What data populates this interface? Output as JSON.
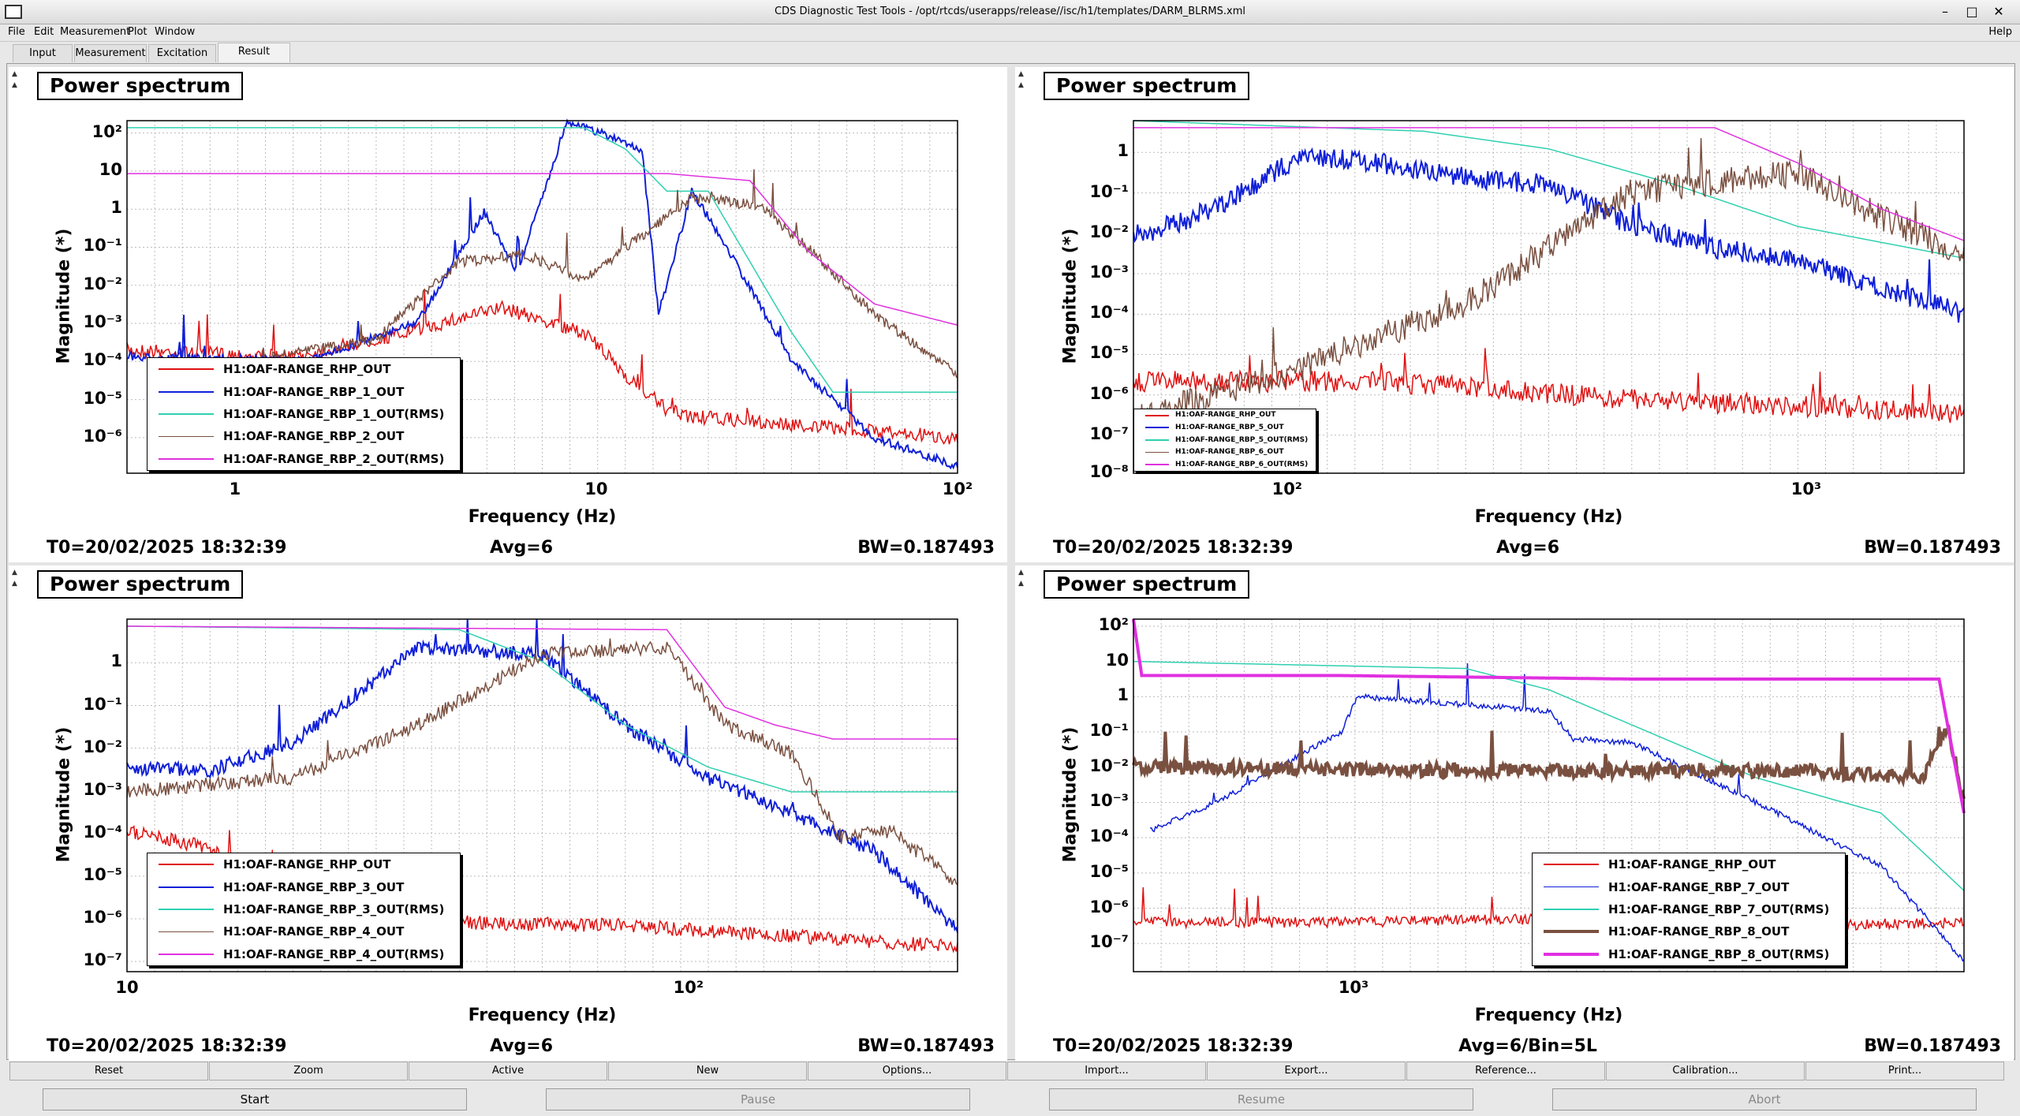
{
  "window": {
    "title": "CDS Diagnostic Test Tools - /opt/rtcds/userapps/release//isc/h1/templates/DARM_BLRMS.xml",
    "controls": [
      "–",
      "□",
      "✕"
    ]
  },
  "menu": {
    "items": [
      "File",
      "Edit",
      "Measurement",
      "Plot",
      "Window"
    ],
    "help": "Help"
  },
  "tabs": [
    "Input",
    "Measurement",
    "Excitation",
    "Result"
  ],
  "active_tab": "Result",
  "colors": {
    "red": "#e01010",
    "blue": "#1020d8",
    "cyan": "#30d0b0",
    "brown": "#7a5040",
    "magenta": "#e030e0"
  },
  "plots": [
    {
      "title": "Power spectrum",
      "ylabel": "Magnitude (*)",
      "xlabel": "Frequency (Hz)",
      "footer": {
        "t0": "T0=20/02/2025 18:32:39",
        "avg": "Avg=6",
        "bw": "BW=0.187493"
      },
      "xticks": [
        "1",
        "10",
        "10²"
      ],
      "yticks": [
        "10²",
        "10",
        "1",
        "10⁻¹",
        "10⁻²",
        "10⁻³",
        "10⁻⁴",
        "10⁻⁵",
        "10⁻⁶"
      ],
      "legend": [
        "H1:OAF-RANGE_RHP_OUT",
        "H1:OAF-RANGE_RBP_1_OUT",
        "H1:OAF-RANGE_RBP_1_OUT(RMS)",
        "H1:OAF-RANGE_RBP_2_OUT",
        "H1:OAF-RANGE_RBP_2_OUT(RMS)"
      ]
    },
    {
      "title": "Power spectrum",
      "ylabel": "Magnitude (*)",
      "xlabel": "Frequency (Hz)",
      "footer": {
        "t0": "T0=20/02/2025 18:32:39",
        "avg": "Avg=6",
        "bw": "BW=0.187493"
      },
      "xticks": [
        "10²",
        "10³"
      ],
      "yticks": [
        "1",
        "10⁻¹",
        "10⁻²",
        "10⁻³",
        "10⁻⁴",
        "10⁻⁵",
        "10⁻⁶",
        "10⁻⁷",
        "10⁻⁸"
      ],
      "legend": [
        "H1:OAF-RANGE_RHP_OUT",
        "H1:OAF-RANGE_RBP_5_OUT",
        "H1:OAF-RANGE_RBP_5_OUT(RMS)",
        "H1:OAF-RANGE_RBP_6_OUT",
        "H1:OAF-RANGE_RBP_6_OUT(RMS)"
      ]
    },
    {
      "title": "Power spectrum",
      "ylabel": "Magnitude (*)",
      "xlabel": "Frequency (Hz)",
      "footer": {
        "t0": "T0=20/02/2025 18:32:39",
        "avg": "Avg=6",
        "bw": "BW=0.187493"
      },
      "xticks": [
        "10",
        "10²"
      ],
      "yticks": [
        "1",
        "10⁻¹",
        "10⁻²",
        "10⁻³",
        "10⁻⁴",
        "10⁻⁵",
        "10⁻⁶",
        "10⁻⁷"
      ],
      "legend": [
        "H1:OAF-RANGE_RHP_OUT",
        "H1:OAF-RANGE_RBP_3_OUT",
        "H1:OAF-RANGE_RBP_3_OUT(RMS)",
        "H1:OAF-RANGE_RBP_4_OUT",
        "H1:OAF-RANGE_RBP_4_OUT(RMS)"
      ]
    },
    {
      "title": "Power spectrum",
      "ylabel": "Magnitude (*)",
      "xlabel": "Frequency (Hz)",
      "footer": {
        "t0": "T0=20/02/2025 18:32:39",
        "avg": "Avg=6/Bin=5L",
        "bw": "BW=0.187493"
      },
      "xticks": [
        "10³"
      ],
      "yticks": [
        "10²",
        "10",
        "1",
        "10⁻¹",
        "10⁻²",
        "10⁻³",
        "10⁻⁴",
        "10⁻⁵",
        "10⁻⁶",
        "10⁻⁷"
      ],
      "legend": [
        "H1:OAF-RANGE_RHP_OUT",
        "H1:OAF-RANGE_RBP_7_OUT",
        "H1:OAF-RANGE_RBP_7_OUT(RMS)",
        "H1:OAF-RANGE_RBP_8_OUT",
        "H1:OAF-RANGE_RBP_8_OUT(RMS)"
      ]
    }
  ],
  "buttons": [
    "Reset",
    "Zoom",
    "Active",
    "New",
    "Options...",
    "Import...",
    "Export...",
    "Reference...",
    "Calibration...",
    "Print..."
  ],
  "controls": [
    "Start",
    "Pause",
    "Resume",
    "Abort"
  ]
}
